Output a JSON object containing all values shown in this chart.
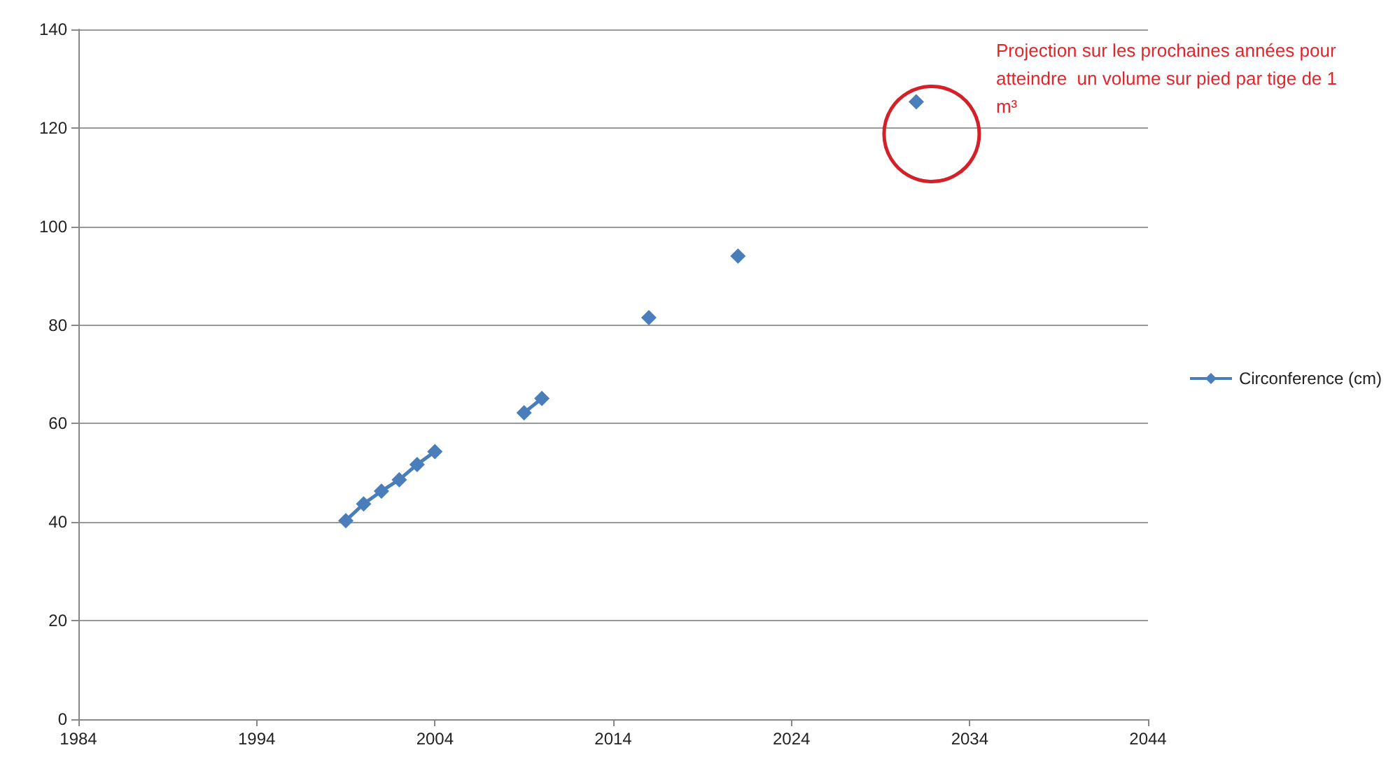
{
  "chart_data": {
    "type": "line",
    "x": [
      1999,
      2000,
      2001,
      2002,
      2003,
      2004,
      2005,
      2009,
      2010,
      2011,
      2016,
      2017,
      2021,
      2022,
      2031
    ],
    "series": [
      {
        "name": "Circonference (cm)",
        "color": "#4a7ebb",
        "values": [
          40.3,
          43.7,
          46.3,
          48.6,
          51.7,
          54.3,
          null,
          62.2,
          65.1,
          null,
          81.5,
          null,
          94.0,
          null,
          125.3
        ]
      }
    ],
    "xlim": [
      1984,
      2044
    ],
    "xticks": [
      1984,
      1994,
      2004,
      2014,
      2024,
      2034,
      2044
    ],
    "ylim": [
      0,
      140
    ],
    "yticks": [
      0,
      20,
      40,
      60,
      80,
      100,
      120,
      140
    ],
    "grid": "y",
    "legend": "right",
    "marker": "diamond",
    "line_style": "solid",
    "annotations": [
      "Projection sur les prochaines années pour atteindre  un volume sur pied par tige de 1 m³"
    ]
  }
}
